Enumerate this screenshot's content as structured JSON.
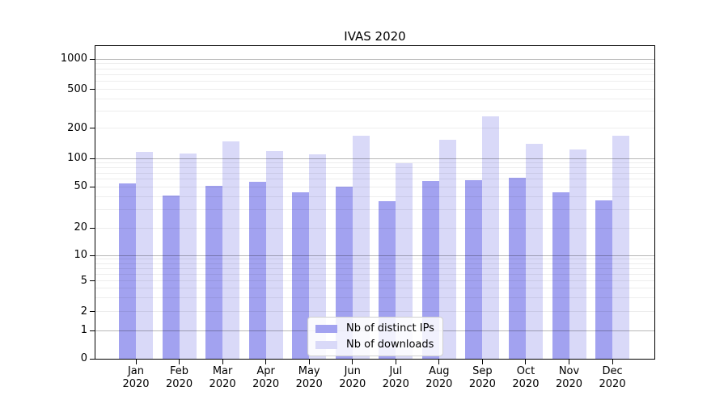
{
  "chart_data": {
    "type": "bar",
    "title": "IVAS 2020",
    "grid": "horizontal log gridlines (major at 1,10,100,1000; minor at 2-9 per decade), drawn over bars",
    "legend_position": "lower center",
    "x_axis": {
      "categories": [
        "Jan",
        "Feb",
        "Mar",
        "Apr",
        "May",
        "Jun",
        "Jul",
        "Aug",
        "Sep",
        "Oct",
        "Nov",
        "Dec"
      ],
      "category_year": "2020"
    },
    "y_axis": {
      "scale": "symlog",
      "range": [
        0,
        1000
      ],
      "tick_values": [
        1000,
        500,
        200,
        100,
        50,
        20,
        10,
        5,
        2,
        1,
        0
      ],
      "tick_labels": [
        "1000",
        "500",
        "200",
        "100",
        "50",
        "20",
        "10",
        "5",
        "2",
        "1",
        "0"
      ]
    },
    "series": [
      {
        "name": "Nb of distinct IPs",
        "color": "#a2a2f0",
        "values": [
          54,
          41,
          51,
          56,
          44,
          50,
          36,
          57,
          59,
          62,
          44,
          37
        ]
      },
      {
        "name": "Nb of downloads",
        "color": "#d9d9f8",
        "values": [
          117,
          111,
          148,
          119,
          110,
          168,
          89,
          154,
          265,
          139,
          123,
          168
        ]
      }
    ]
  }
}
